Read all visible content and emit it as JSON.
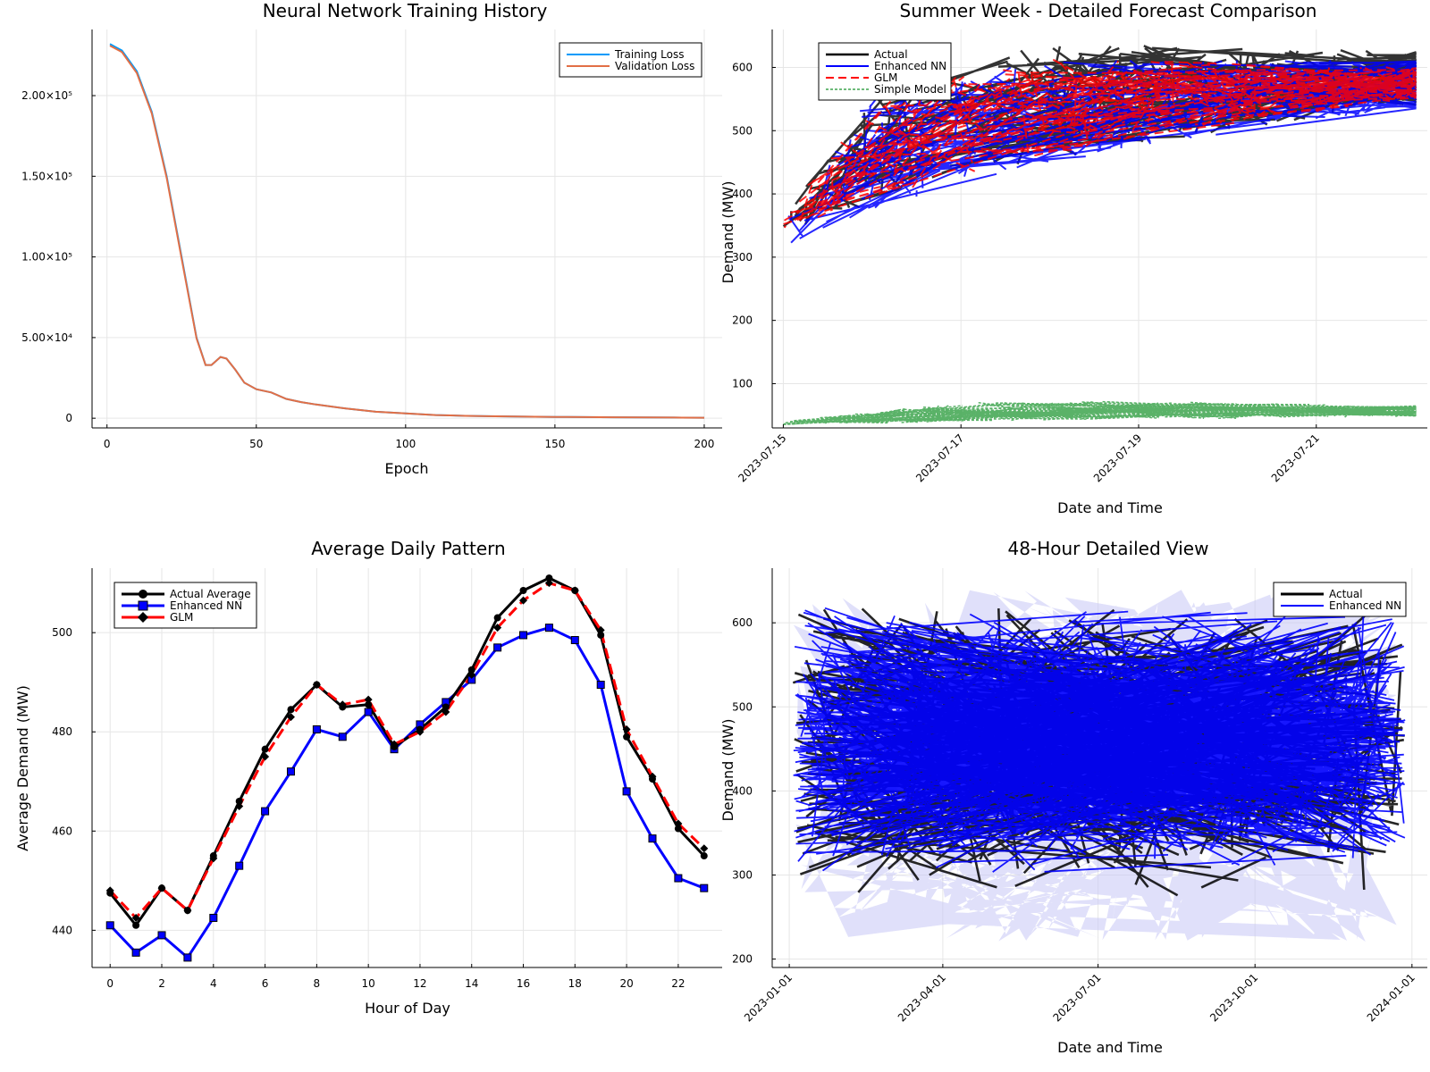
{
  "chart_data": [
    {
      "type": "line",
      "title": "Neural Network Training History",
      "xlabel": "Epoch",
      "ylabel": "",
      "xlim": [
        -5,
        206
      ],
      "ylim": [
        -6000,
        241000
      ],
      "xticks": [
        0,
        50,
        100,
        150,
        200
      ],
      "yticks": [
        0,
        50000,
        100000,
        150000,
        200000
      ],
      "yticklabels": [
        "0",
        "5.00×10⁴",
        "1.00×10⁵",
        "1.50×10⁵",
        "2.00×10⁵"
      ],
      "grid": true,
      "legend_position": "top-right",
      "x": [
        1,
        5,
        10,
        15,
        20,
        25,
        30,
        33,
        35,
        38,
        40,
        43,
        46,
        50,
        55,
        60,
        65,
        70,
        80,
        90,
        100,
        110,
        120,
        130,
        140,
        150,
        160,
        170,
        180,
        190,
        200
      ],
      "series": [
        {
          "name": "Training Loss",
          "color": "#009AFA",
          "values": [
            232000,
            228000,
            215000,
            190000,
            150000,
            100000,
            50000,
            33000,
            33000,
            38000,
            37000,
            30000,
            22000,
            18000,
            16000,
            12000,
            10000,
            8500,
            6000,
            4000,
            3000,
            2000,
            1500,
            1200,
            1000,
            800,
            700,
            600,
            500,
            400,
            300
          ]
        },
        {
          "name": "Validation Loss",
          "color": "#E26F46",
          "values": [
            231000,
            227000,
            214000,
            189000,
            149000,
            99000,
            49500,
            33000,
            33000,
            38000,
            37000,
            30000,
            22000,
            18000,
            16000,
            12000,
            10000,
            8500,
            6000,
            4000,
            3000,
            2000,
            1500,
            1200,
            1000,
            800,
            700,
            600,
            500,
            400,
            300
          ]
        }
      ]
    },
    {
      "type": "line",
      "title": "Summer Week - Detailed Forecast Comparison",
      "xlabel": "Date and Time",
      "ylabel": "Demand (MW)",
      "x_axis_type": "date",
      "xlim": [
        "2023-07-14 21:00",
        "2023-07-22 06:00"
      ],
      "ylim": [
        30,
        660
      ],
      "xticks": [
        "2023-07-15",
        "2023-07-17",
        "2023-07-19",
        "2023-07-21"
      ],
      "yticks": [
        100,
        200,
        300,
        400,
        500,
        600
      ],
      "grid": true,
      "legend_position": "top-left",
      "series": [
        {
          "name": "Actual",
          "color": "#000000",
          "style": "solid",
          "trend": [
            [
              "2023-07-15",
              340
            ],
            [
              "2023-07-17",
              430
            ],
            [
              "2023-07-19",
              480
            ],
            [
              "2023-07-21",
              520
            ],
            [
              "2023-07-22",
              540
            ]
          ],
          "upper": [
            [
              "2023-07-15",
              360
            ],
            [
              "2023-07-16",
              560
            ],
            [
              "2023-07-18",
              640
            ],
            [
              "2023-07-22",
              625
            ]
          ]
        },
        {
          "name": "Enhanced NN",
          "color": "#0000FF",
          "style": "solid",
          "trend": [
            [
              "2023-07-15",
              315
            ],
            [
              "2023-07-17",
              420
            ],
            [
              "2023-07-19",
              475
            ],
            [
              "2023-07-21",
              515
            ],
            [
              "2023-07-22",
              535
            ]
          ],
          "upper": [
            [
              "2023-07-15",
              355
            ],
            [
              "2023-07-16",
              560
            ],
            [
              "2023-07-18",
              615
            ],
            [
              "2023-07-22",
              610
            ]
          ]
        },
        {
          "name": "GLM",
          "color": "#FF0000",
          "style": "dashed",
          "trend": [
            [
              "2023-07-15",
              345
            ],
            [
              "2023-07-17",
              430
            ],
            [
              "2023-07-19",
              490
            ],
            [
              "2023-07-21",
              530
            ],
            [
              "2023-07-22",
              550
            ]
          ],
          "upper": [
            [
              "2023-07-15",
              360
            ],
            [
              "2023-07-16",
              560
            ],
            [
              "2023-07-18",
              615
            ],
            [
              "2023-07-22",
              600
            ]
          ]
        },
        {
          "name": "Simple Model",
          "color": "#3DA44D",
          "style": "dotted",
          "trend": [
            [
              "2023-07-15",
              35
            ],
            [
              "2023-07-17",
              40
            ],
            [
              "2023-07-19",
              45
            ],
            [
              "2023-07-21",
              45
            ],
            [
              "2023-07-22",
              48
            ]
          ],
          "upper": [
            [
              "2023-07-15",
              40
            ],
            [
              "2023-07-17",
              70
            ],
            [
              "2023-07-19",
              72
            ],
            [
              "2023-07-22",
              65
            ]
          ]
        }
      ]
    },
    {
      "type": "line",
      "title": "Average Daily Pattern",
      "xlabel": "Hour of Day",
      "ylabel": "Average Demand (MW)",
      "xlim": [
        -0.7,
        23.7
      ],
      "ylim": [
        432.5,
        513
      ],
      "xticks": [
        0,
        2,
        4,
        6,
        8,
        10,
        12,
        14,
        16,
        18,
        20,
        22
      ],
      "yticks": [
        440,
        460,
        480,
        500
      ],
      "grid": true,
      "legend_position": "top-left",
      "categories": [
        0,
        1,
        2,
        3,
        4,
        5,
        6,
        7,
        8,
        9,
        10,
        11,
        12,
        13,
        14,
        15,
        16,
        17,
        18,
        19,
        20,
        21,
        22,
        23
      ],
      "series": [
        {
          "name": "Actual Average",
          "color": "#000000",
          "marker": "circle",
          "style": "solid",
          "values": [
            447.5,
            441.0,
            448.5,
            444.0,
            455.0,
            466.0,
            476.5,
            484.5,
            489.5,
            485.0,
            485.5,
            477.0,
            480.5,
            485.0,
            492.5,
            503.0,
            508.5,
            511.0,
            508.5,
            499.5,
            479.0,
            470.5,
            460.5,
            455.0
          ]
        },
        {
          "name": "Enhanced NN",
          "color": "#0000FF",
          "marker": "square",
          "style": "solid",
          "values": [
            441.0,
            435.5,
            439.0,
            434.5,
            442.5,
            453.0,
            464.0,
            472.0,
            480.5,
            479.0,
            484.0,
            476.5,
            481.5,
            486.0,
            490.5,
            497.0,
            499.5,
            501.0,
            498.5,
            489.5,
            468.0,
            458.5,
            450.5,
            448.5
          ]
        },
        {
          "name": "GLM",
          "color": "#FF0000",
          "marker": "diamond",
          "style": "dashed",
          "values": [
            448.0,
            442.5,
            448.5,
            444.0,
            454.5,
            465.0,
            475.0,
            483.0,
            489.5,
            485.5,
            486.5,
            477.5,
            480.0,
            484.0,
            491.5,
            501.0,
            506.5,
            510.0,
            508.5,
            500.5,
            480.5,
            471.0,
            461.5,
            456.5
          ]
        }
      ]
    },
    {
      "type": "line",
      "title": "48-Hour Detailed View",
      "xlabel": "Date and Time",
      "ylabel": "Demand (MW)",
      "x_axis_type": "date",
      "xlim": [
        "2022-12-22",
        "2024-01-10"
      ],
      "ylim": [
        190,
        665
      ],
      "xticks": [
        "2023-01-01",
        "2023-04-01",
        "2023-07-01",
        "2023-10-01",
        "2024-01-01"
      ],
      "yticks": [
        200,
        300,
        400,
        500,
        600
      ],
      "grid": true,
      "legend_position": "top-right",
      "band": {
        "color": "#C7C7F5",
        "lower": 200,
        "upper": 650
      },
      "series": [
        {
          "name": "Actual",
          "color": "#000000",
          "range": [
            270,
            630
          ],
          "from": "2023-01-01",
          "to": "2023-12-31"
        },
        {
          "name": "Enhanced NN",
          "color": "#0000FF",
          "range": [
            300,
            625
          ],
          "from": "2023-01-01",
          "to": "2023-12-31"
        }
      ]
    }
  ]
}
